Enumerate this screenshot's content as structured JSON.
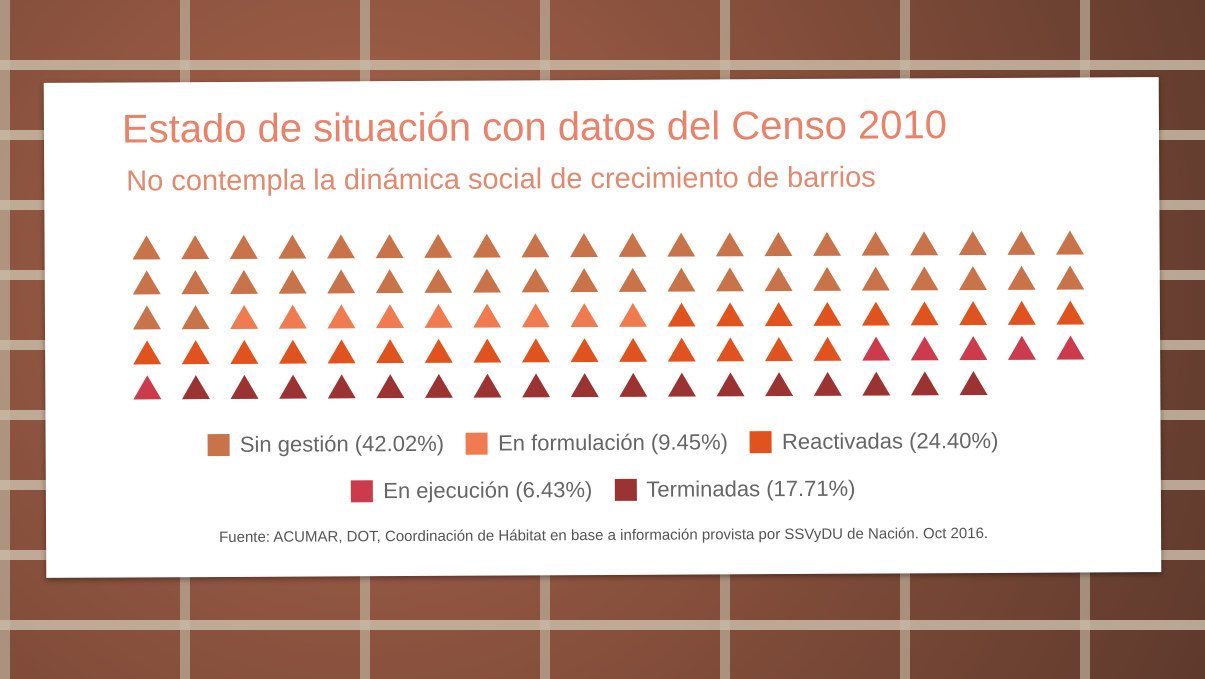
{
  "chart_data": {
    "type": "waffle",
    "title": "Estado de situación con datos del Censo 2010",
    "subtitle": "No contempla la dinámica social de crecimiento de barrios",
    "categories": [
      "Sin gestión (42.02%)",
      "En formulación (9.45%)",
      "Reactivadas (24.40%)",
      "En ejecución (6.43%)",
      "Terminadas (17.71%)"
    ],
    "values": [
      42.02,
      9.45,
      24.4,
      6.43,
      17.71
    ],
    "colors": [
      "#c8734a",
      "#f07b50",
      "#e0531e",
      "#cc3b4c",
      "#9c3333"
    ],
    "source": "Fuente: ACUMAR, DOT, Coordinación de Hábitat en base a información provista por SSVyDU de Nación. Oct 2016."
  }
}
